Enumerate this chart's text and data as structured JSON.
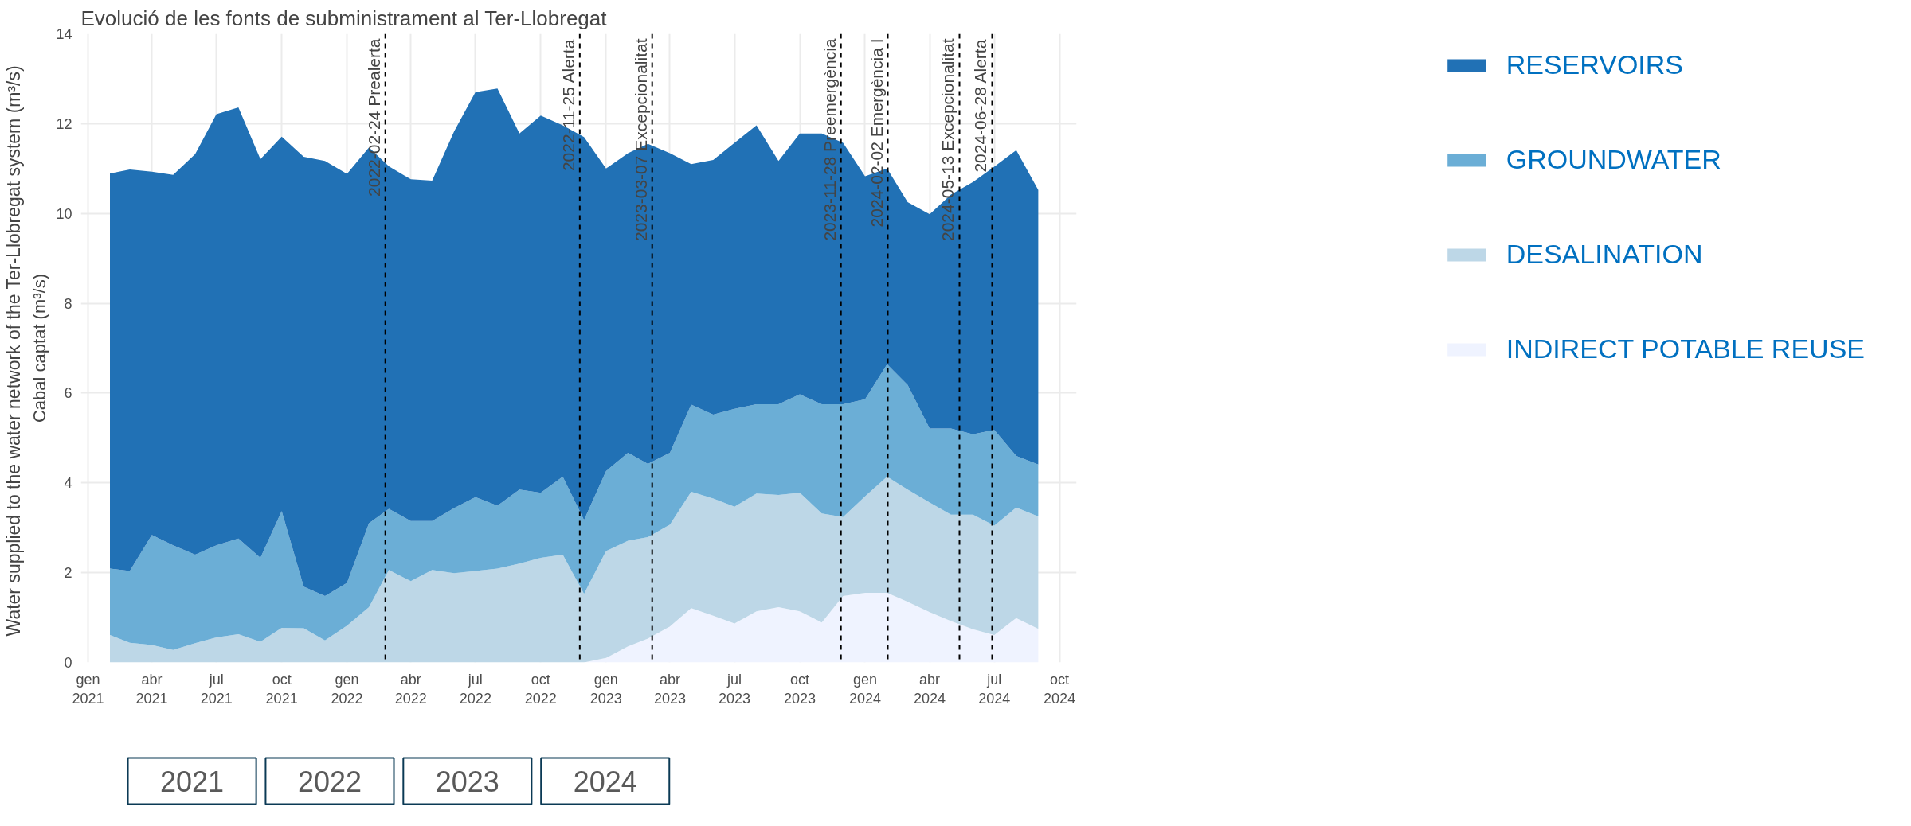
{
  "chart_data": {
    "type": "area",
    "stacked": true,
    "title": "Evolució de les fonts de subministrament al Ter-Llobregat",
    "ylabel": "Cabal captat (m³/s)",
    "annotations": [
      "Water supplied  to the water network of the Ter-Llobregat system (m³/s)",
      "2021",
      "2022",
      "2023",
      "2024"
    ],
    "x": [
      "2021-02",
      "2021-03",
      "2021-04",
      "2021-05",
      "2021-06",
      "2021-07",
      "2021-08",
      "2021-09",
      "2021-10",
      "2021-11",
      "2021-12",
      "2022-01",
      "2022-02",
      "2022-03",
      "2022-04",
      "2022-05",
      "2022-06",
      "2022-07",
      "2022-08",
      "2022-09",
      "2022-10",
      "2022-11",
      "2022-12",
      "2023-01",
      "2023-02",
      "2023-03",
      "2023-04",
      "2023-05",
      "2023-06",
      "2023-07",
      "2023-08",
      "2023-09",
      "2023-10",
      "2023-11",
      "2023-12",
      "2024-01",
      "2024-02",
      "2024-03",
      "2024-04",
      "2024-05",
      "2024-06",
      "2024-07",
      "2024-08",
      "2024-09"
    ],
    "series": [
      {
        "name": "INDIRECT POTABLE REUSE",
        "color": "#eff3ff",
        "values": [
          0,
          0,
          0,
          0,
          0,
          0,
          0,
          0,
          0,
          0,
          0,
          0,
          0,
          0,
          0,
          0,
          0,
          0,
          0,
          0,
          0,
          0,
          0,
          0.1,
          0.36,
          0.53,
          0.8,
          1.21,
          1.04,
          0.87,
          1.14,
          1.23,
          1.14,
          0.89,
          1.48,
          1.55,
          1.55,
          1.35,
          1.12,
          0.92,
          0.74,
          0.61,
          0.99,
          0.75
        ]
      },
      {
        "name": "DESALINATION",
        "color": "#bdd7e7",
        "values": [
          0.61,
          0.44,
          0.39,
          0.28,
          0.43,
          0.56,
          0.63,
          0.46,
          0.77,
          0.76,
          0.49,
          0.82,
          1.23,
          2.06,
          1.81,
          2.06,
          1.99,
          2.04,
          2.09,
          2.2,
          2.33,
          2.4,
          1.53,
          2.38,
          2.35,
          2.26,
          2.27,
          2.59,
          2.61,
          2.6,
          2.62,
          2.5,
          2.64,
          2.43,
          1.76,
          2.15,
          2.59,
          2.5,
          2.44,
          2.37,
          2.55,
          2.44,
          2.46,
          2.5
        ]
      },
      {
        "name": "GROUNDWATER",
        "color": "#6baed6",
        "values": [
          1.48,
          1.6,
          2.45,
          2.33,
          1.97,
          2.05,
          2.13,
          1.87,
          2.6,
          0.93,
          0.99,
          0.95,
          1.87,
          1.36,
          1.34,
          1.09,
          1.45,
          1.64,
          1.4,
          1.65,
          1.45,
          1.74,
          1.64,
          1.78,
          1.96,
          1.63,
          1.6,
          1.94,
          1.87,
          2.18,
          1.99,
          2.02,
          2.19,
          2.43,
          2.51,
          2.16,
          2.5,
          2.33,
          1.65,
          1.92,
          1.79,
          2.13,
          1.15,
          1.16
        ]
      },
      {
        "name": "RESERVOIRS",
        "color": "#2171b5",
        "values": [
          8.8,
          8.94,
          8.09,
          8.25,
          8.92,
          9.6,
          9.6,
          8.88,
          8.34,
          9.57,
          9.69,
          9.11,
          8.37,
          7.63,
          7.61,
          7.58,
          8.39,
          9.02,
          9.29,
          7.93,
          8.4,
          7.82,
          8.53,
          6.74,
          6.67,
          7.13,
          6.67,
          5.36,
          5.67,
          5.92,
          6.21,
          5.42,
          5.81,
          6.03,
          5.82,
          4.97,
          4.36,
          4.07,
          4.77,
          5.21,
          5.62,
          5.86,
          6.81,
          6.11
        ]
      }
    ],
    "xlim": [
      "2020-12-22",
      "2024-10-25"
    ],
    "xticks": [
      {
        "value": "2021-01",
        "label": "gen\n2021"
      },
      {
        "value": "2021-04",
        "label": "abr\n2021"
      },
      {
        "value": "2021-07",
        "label": "jul\n2021"
      },
      {
        "value": "2021-10",
        "label": "oct\n2021"
      },
      {
        "value": "2022-01",
        "label": "gen\n2022"
      },
      {
        "value": "2022-04",
        "label": "abr\n2022"
      },
      {
        "value": "2022-07",
        "label": "jul\n2022"
      },
      {
        "value": "2022-10",
        "label": "oct\n2022"
      },
      {
        "value": "2023-01",
        "label": "gen\n2023"
      },
      {
        "value": "2023-04",
        "label": "abr\n2023"
      },
      {
        "value": "2023-07",
        "label": "jul\n2023"
      },
      {
        "value": "2023-10",
        "label": "oct\n2023"
      },
      {
        "value": "2024-01",
        "label": "gen\n2024"
      },
      {
        "value": "2024-04",
        "label": "abr\n2024"
      },
      {
        "value": "2024-07",
        "label": "jul\n2024"
      },
      {
        "value": "2024-10",
        "label": "oct\n2024"
      }
    ],
    "ylim": [
      0,
      14
    ],
    "yticks": [
      0,
      2,
      4,
      6,
      8,
      10,
      12,
      14
    ],
    "ref_lines": [
      {
        "axis": "x",
        "value": "2022-02-24",
        "label": "2022-02-24 Prealerta",
        "line_style": "dashed",
        "color": "#000000"
      },
      {
        "axis": "x",
        "value": "2022-11-25",
        "label": "2022-11-25 Alerta",
        "line_style": "dashed",
        "color": "#000000"
      },
      {
        "axis": "x",
        "value": "2023-03-07",
        "label": "2023-03-07 Excepcionalitat",
        "line_style": "dashed",
        "color": "#000000"
      },
      {
        "axis": "x",
        "value": "2023-11-28",
        "label": "2023-11-28 Preemergència",
        "line_style": "dashed",
        "color": "#000000"
      },
      {
        "axis": "x",
        "value": "2024-02-02",
        "label": "2024-02-02 Emergència I",
        "line_style": "dashed",
        "color": "#000000"
      },
      {
        "axis": "x",
        "value": "2024-05-13",
        "label": "2024-05-13 Excepcionalitat",
        "line_style": "dashed",
        "color": "#000000"
      },
      {
        "axis": "x",
        "value": "2024-06-28",
        "label": "2024-06-28 Alerta",
        "line_style": "dashed",
        "color": "#000000"
      }
    ],
    "grid": true,
    "legend": "right"
  }
}
